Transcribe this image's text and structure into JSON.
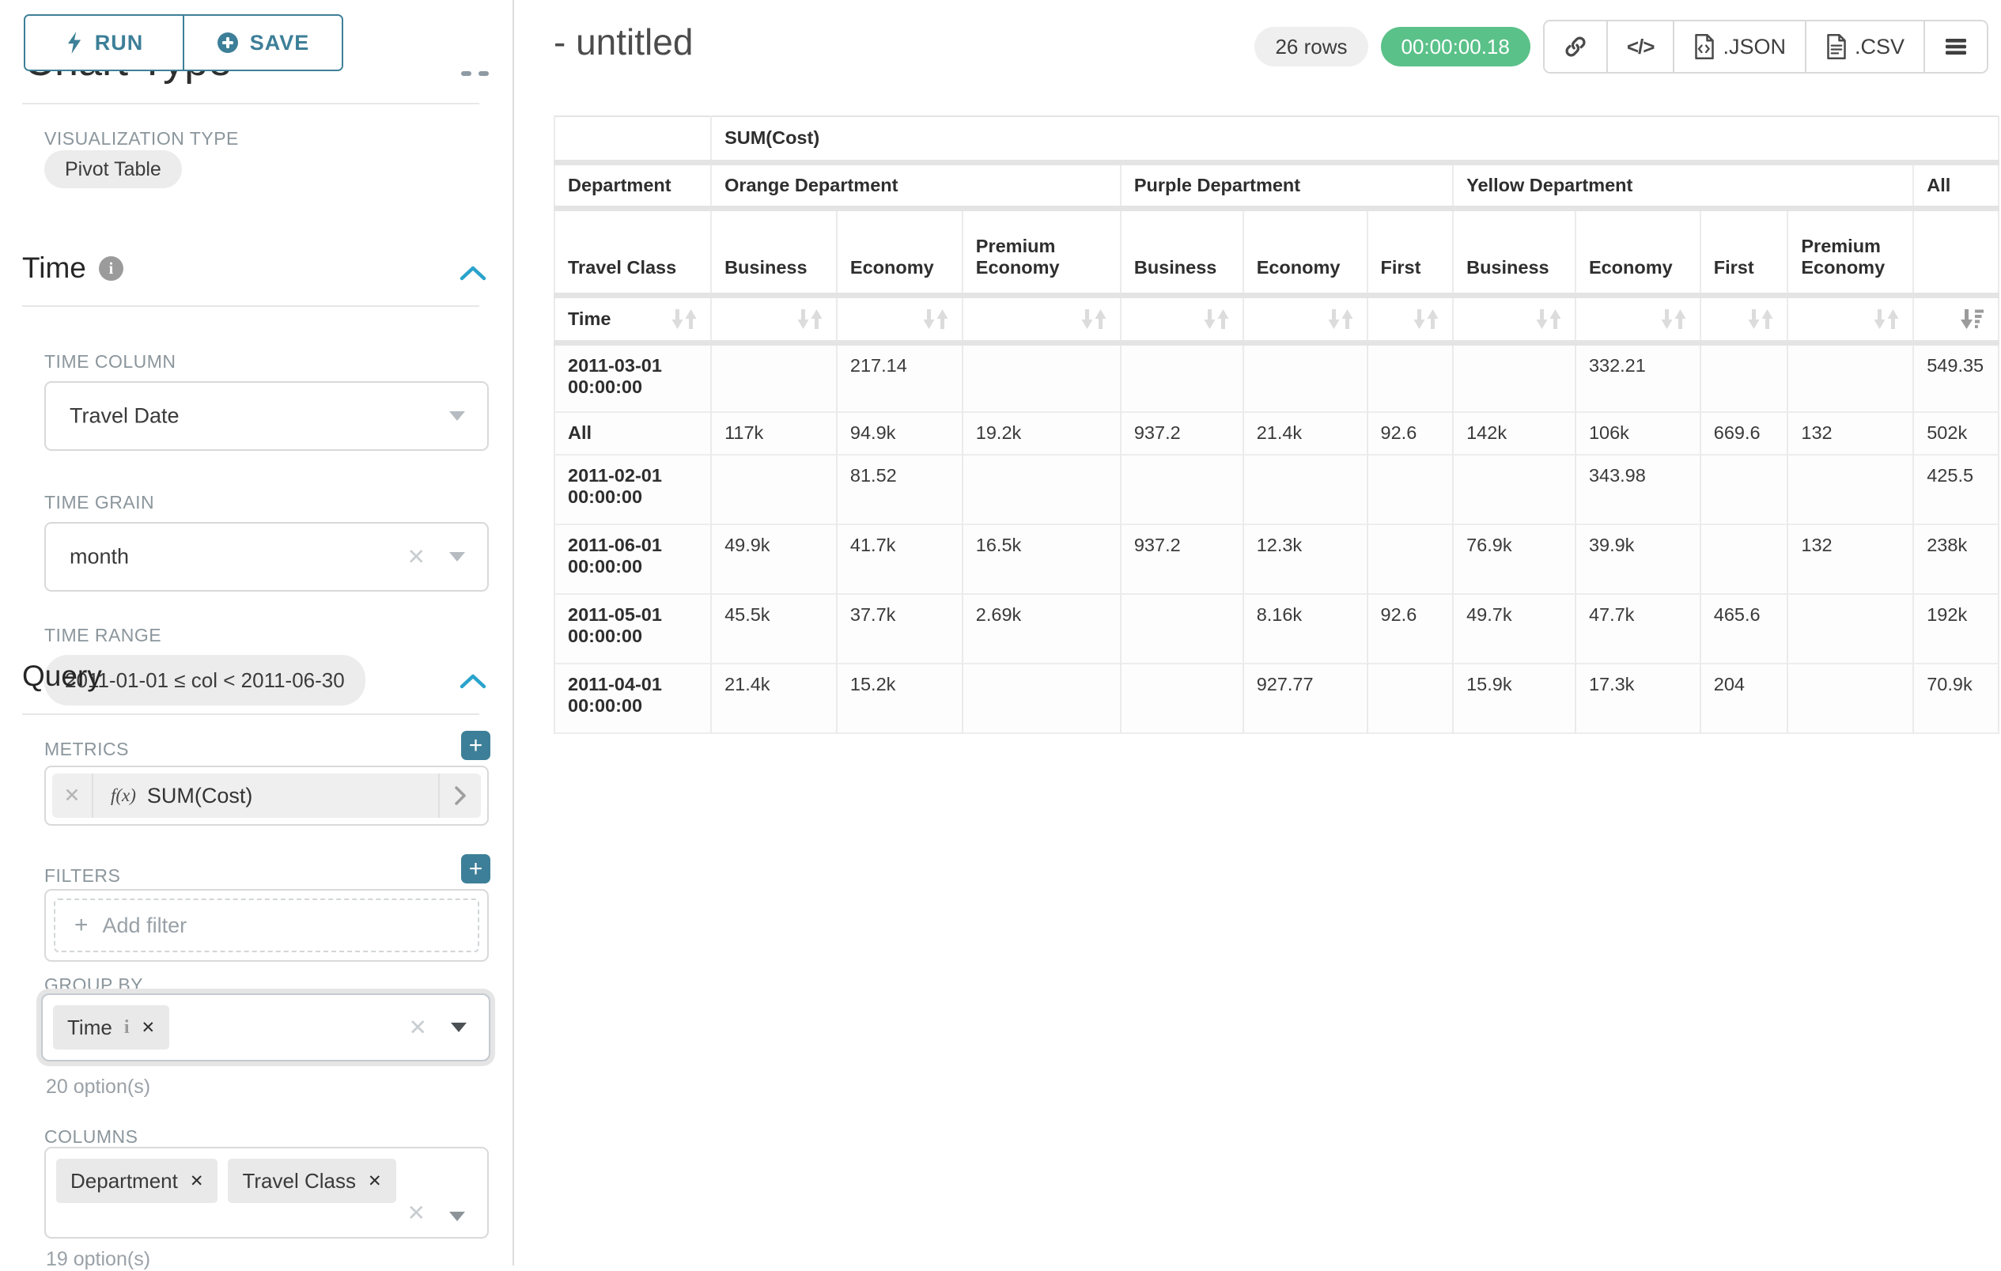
{
  "toolbar": {
    "run_label": "RUN",
    "save_label": "SAVE"
  },
  "sidebar": {
    "clipped_section_title": "Chart Type",
    "visualization_type_label": "VISUALIZATION TYPE",
    "visualization_type_value": "Pivot Table",
    "time_section_title": "Time",
    "time_column_label": "TIME COLUMN",
    "time_column_value": "Travel Date",
    "time_grain_label": "TIME GRAIN",
    "time_grain_value": "month",
    "time_range_label": "TIME RANGE",
    "time_range_value": "2011-01-01 ≤ col < 2011-06-30",
    "query_section_title": "Query",
    "metrics_label": "METRICS",
    "metric_fx": "f(x)",
    "metric_value": "SUM(Cost)",
    "filters_label": "FILTERS",
    "add_filter_label": "Add filter",
    "group_by_label": "GROUP BY",
    "group_by_chips": [
      {
        "label": "Time",
        "has_info": true
      }
    ],
    "group_by_options_count": "20 option(s)",
    "columns_label": "COLUMNS",
    "columns_chips": [
      {
        "label": "Department",
        "has_info": false
      },
      {
        "label": "Travel Class",
        "has_info": false
      }
    ],
    "columns_options_count": "19 option(s)"
  },
  "header": {
    "title": "- untitled",
    "rows_badge": "26 rows",
    "timer": "00:00:00.18",
    "export_json_label": ".JSON",
    "export_csv_label": ".CSV"
  },
  "pivot_table": {
    "metric_header": "SUM(Cost)",
    "row_dim_label": "Department",
    "row_dim2_label": "Travel Class",
    "time_label": "Time",
    "all_col_label": "All",
    "groups": [
      {
        "name": "Orange Department",
        "cols": [
          "Business",
          "Economy",
          "Premium Economy"
        ]
      },
      {
        "name": "Purple Department",
        "cols": [
          "Business",
          "Economy",
          "First"
        ]
      },
      {
        "name": "Yellow Department",
        "cols": [
          "Business",
          "Economy",
          "First",
          "Premium Economy"
        ]
      }
    ],
    "sorted_column": "All",
    "rows": [
      {
        "label": "2011-03-01 00:00:00",
        "values": [
          "",
          "217.14",
          "",
          "",
          "",
          "",
          "",
          "332.21",
          "",
          "",
          "549.35"
        ]
      },
      {
        "label": "All",
        "values": [
          "117k",
          "94.9k",
          "19.2k",
          "937.2",
          "21.4k",
          "92.6",
          "142k",
          "106k",
          "669.6",
          "132",
          "502k"
        ]
      },
      {
        "label": "2011-02-01 00:00:00",
        "values": [
          "",
          "81.52",
          "",
          "",
          "",
          "",
          "",
          "343.98",
          "",
          "",
          "425.5"
        ]
      },
      {
        "label": "2011-06-01 00:00:00",
        "values": [
          "49.9k",
          "41.7k",
          "16.5k",
          "937.2",
          "12.3k",
          "",
          "76.9k",
          "39.9k",
          "",
          "132",
          "238k"
        ]
      },
      {
        "label": "2011-05-01 00:00:00",
        "values": [
          "45.5k",
          "37.7k",
          "2.69k",
          "",
          "8.16k",
          "92.6",
          "49.7k",
          "47.7k",
          "465.6",
          "",
          "192k"
        ]
      },
      {
        "label": "2011-04-01 00:00:00",
        "values": [
          "21.4k",
          "15.2k",
          "",
          "",
          "927.77",
          "",
          "15.9k",
          "17.3k",
          "204",
          "",
          "70.9k"
        ]
      }
    ]
  },
  "colors": {
    "accent_teal": "#3d7f98",
    "chevron_blue": "#2aa3cc",
    "timer_green": "#5ac189"
  }
}
